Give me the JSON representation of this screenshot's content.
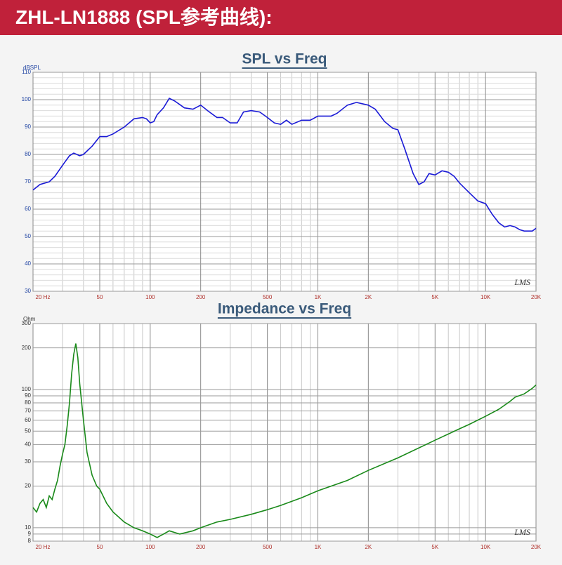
{
  "header": {
    "title": "ZHL-LN1888 (SPL参考曲线):"
  },
  "chart_data": [
    {
      "type": "line",
      "title": "SPL vs Freq",
      "ylabel": "dBSPL",
      "watermark": "LMS",
      "xscale": "log",
      "yscale": "linear",
      "xlim": [
        20,
        20000
      ],
      "ylim": [
        30,
        110
      ],
      "xticks": [
        {
          "value": 20,
          "label": "20 Hz"
        },
        50,
        100,
        200,
        500,
        {
          "value": 1000,
          "label": "1K"
        },
        {
          "value": 2000,
          "label": "2K"
        },
        {
          "value": 5000,
          "label": "5K"
        },
        {
          "value": 10000,
          "label": "10K"
        },
        {
          "value": 20000,
          "label": "20K"
        }
      ],
      "xminorticks": [
        30,
        40,
        60,
        70,
        80,
        90,
        300,
        400,
        600,
        700,
        800,
        900,
        3000,
        4000,
        6000,
        7000,
        8000,
        9000
      ],
      "yticks": [
        30,
        40,
        50,
        60,
        70,
        80,
        90,
        100,
        110
      ],
      "yminorticks": [
        32,
        34,
        36,
        38,
        42,
        44,
        46,
        48,
        52,
        54,
        56,
        58,
        62,
        64,
        66,
        68,
        72,
        74,
        76,
        78,
        82,
        84,
        86,
        88,
        92,
        94,
        96,
        98,
        102,
        104,
        106,
        108
      ],
      "grid": true,
      "x": [
        20,
        22,
        25,
        27,
        30,
        33,
        35,
        38,
        40,
        45,
        50,
        55,
        60,
        70,
        80,
        90,
        95,
        100,
        105,
        110,
        120,
        130,
        140,
        160,
        180,
        200,
        220,
        250,
        270,
        300,
        330,
        360,
        400,
        450,
        500,
        550,
        600,
        650,
        700,
        800,
        900,
        1000,
        1200,
        1300,
        1500,
        1700,
        2000,
        2200,
        2500,
        2800,
        3000,
        3300,
        3700,
        4000,
        4300,
        4600,
        5000,
        5500,
        6000,
        6500,
        7000,
        8000,
        9000,
        10000,
        11000,
        12000,
        13000,
        14000,
        15000,
        16000,
        17000,
        18000,
        19000,
        20000
      ],
      "series": [
        {
          "color": "#1a1ad6",
          "values": [
            67,
            69,
            70,
            72,
            76,
            79.5,
            80.5,
            79.5,
            80,
            83,
            86.5,
            86.5,
            87.5,
            90,
            93,
            93.5,
            93,
            91.5,
            92,
            94.5,
            97,
            100.5,
            99.5,
            97,
            96.5,
            98,
            96,
            93.5,
            93.5,
            91.5,
            91.5,
            95.5,
            96,
            95.5,
            93.5,
            91.5,
            91,
            92.5,
            91,
            92.5,
            92.5,
            94,
            94,
            95,
            98,
            99,
            98,
            96.5,
            92,
            89.5,
            89,
            82,
            73,
            69,
            70,
            73,
            72.5,
            74,
            73.5,
            72,
            69.5,
            66,
            63,
            62,
            58,
            55,
            53.5,
            54,
            53.5,
            52.5,
            52,
            52,
            52,
            53
          ]
        }
      ]
    },
    {
      "type": "line",
      "title": "Impedance vs Freq",
      "ylabel": "Ohm",
      "watermark": "LMS",
      "xscale": "log",
      "yscale": "log",
      "xlim": [
        20,
        20000
      ],
      "ylim": [
        8,
        300
      ],
      "xticks": [
        {
          "value": 20,
          "label": "20 Hz"
        },
        50,
        100,
        200,
        500,
        {
          "value": 1000,
          "label": "1K"
        },
        {
          "value": 2000,
          "label": "2K"
        },
        {
          "value": 5000,
          "label": "5K"
        },
        {
          "value": 10000,
          "label": "10K"
        },
        {
          "value": 20000,
          "label": "20K"
        }
      ],
      "xminorticks": [
        30,
        40,
        60,
        70,
        80,
        90,
        300,
        400,
        600,
        700,
        800,
        900,
        3000,
        4000,
        6000,
        7000,
        8000,
        9000
      ],
      "yticks": [
        8,
        9,
        10,
        20,
        30,
        40,
        50,
        60,
        70,
        80,
        90,
        100,
        200,
        300
      ],
      "yminorticks": [],
      "grid": true,
      "x": [
        20,
        21,
        22,
        23,
        24,
        25,
        26,
        27,
        28,
        29,
        30,
        31,
        32,
        33,
        34,
        35,
        36,
        37,
        38,
        40,
        42,
        45,
        48,
        50,
        55,
        60,
        70,
        80,
        90,
        100,
        110,
        120,
        130,
        150,
        180,
        200,
        250,
        300,
        400,
        500,
        600,
        800,
        1000,
        1500,
        2000,
        3000,
        5000,
        7000,
        8000,
        10000,
        12000,
        14000,
        15000,
        17000,
        19000,
        20000
      ],
      "series": [
        {
          "color": "#1a8a1a",
          "values": [
            14,
            13,
            15,
            16,
            14,
            17,
            16,
            19,
            22,
            28,
            34,
            40,
            55,
            80,
            130,
            180,
            215,
            170,
            110,
            60,
            35,
            24,
            20,
            19,
            15,
            13,
            11,
            10,
            9.5,
            9,
            8.5,
            9,
            9.5,
            9,
            9.5,
            10,
            11,
            11.5,
            12.5,
            13.5,
            14.5,
            16.5,
            18.5,
            22,
            26,
            32,
            43,
            52,
            56,
            64,
            72,
            82,
            88,
            93,
            102,
            108
          ]
        }
      ]
    }
  ]
}
